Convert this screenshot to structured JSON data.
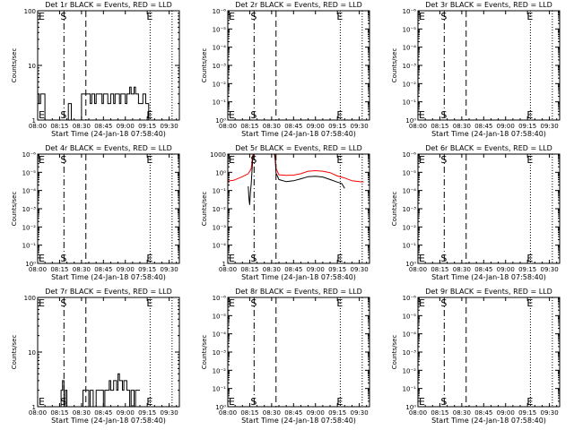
{
  "common": {
    "x_tick_labels": [
      "08:00",
      "08:15",
      "08:30",
      "08:45",
      "09:00",
      "09:15",
      "09:30"
    ],
    "x_tick_minutes": [
      0,
      15,
      30,
      45,
      60,
      75,
      90
    ],
    "x_range_minutes": [
      0,
      97
    ],
    "xlabel": "Start Time (24-Jan-18 07:58:40)",
    "ylabel": "Counts/sec",
    "start_marker": "S",
    "end_marker": "E",
    "colors": {
      "events": "#000000",
      "lld": "#ff0000"
    }
  },
  "chart_data": [
    {
      "type": "line",
      "title": "Det 1r BLACK = Events, RED = LLD",
      "yscale": "log",
      "ylim": [
        1,
        100
      ],
      "y_tick_labels": [
        "1",
        "10",
        "100"
      ],
      "vlines": {
        "dashdot": 18,
        "dashed": 33,
        "dotted": [
          77,
          92
        ]
      },
      "markers": {
        "S_minute": 18,
        "E_minute": 77
      },
      "series": [
        {
          "color": "#000000",
          "steps": [
            [
              -2,
              3
            ],
            [
              1,
              2
            ],
            [
              2,
              3
            ],
            [
              5,
              1
            ],
            [
              20,
              1
            ],
            [
              21,
              2
            ],
            [
              23,
              1
            ],
            [
              29,
              1
            ],
            [
              30,
              3
            ],
            [
              36,
              2
            ],
            [
              37,
              3
            ],
            [
              39,
              2
            ],
            [
              40,
              3
            ],
            [
              44,
              2
            ],
            [
              45,
              3
            ],
            [
              48,
              2
            ],
            [
              50,
              3
            ],
            [
              52,
              2
            ],
            [
              53,
              3
            ],
            [
              56,
              2
            ],
            [
              57,
              3
            ],
            [
              60,
              2
            ],
            [
              61,
              3
            ],
            [
              63,
              4
            ],
            [
              64,
              3
            ],
            [
              66,
              4
            ],
            [
              67,
              3
            ],
            [
              69,
              2
            ],
            [
              72,
              3
            ],
            [
              74,
              2
            ],
            [
              76,
              1
            ],
            [
              76.5,
              1
            ]
          ]
        }
      ]
    },
    {
      "type": "line",
      "title": "Det 2r BLACK = Events, RED = LLD",
      "yscale": "log",
      "ylim": [
        1,
        1000000
      ],
      "y_tick_labels": [
        "10⁰",
        "10⁻¹",
        "10⁻²",
        "10⁻³",
        "10⁻⁴",
        "10⁻⁵",
        "10⁻⁶"
      ],
      "vlines": {
        "dashdot": 18,
        "dashed": 33,
        "dotted": [
          77,
          92
        ]
      },
      "markers": {
        "S_minute": 18,
        "E_minute": 77
      },
      "series": []
    },
    {
      "type": "line",
      "title": "Det 3r BLACK = Events, RED = LLD",
      "yscale": "log",
      "ylim": [
        1,
        1000000
      ],
      "y_tick_labels": [
        "10⁰",
        "10⁻¹",
        "10⁻²",
        "10⁻³",
        "10⁻⁴",
        "10⁻⁵",
        "10⁻⁶"
      ],
      "vlines": {
        "dashdot": 18,
        "dashed": 33,
        "dotted": [
          77,
          92
        ]
      },
      "markers": {
        "S_minute": 18,
        "E_minute": 77
      },
      "series": []
    },
    {
      "type": "line",
      "title": "Det 4r BLACK = Events, RED = LLD",
      "yscale": "log",
      "ylim": [
        1,
        1000000
      ],
      "y_tick_labels": [
        "10⁰",
        "10⁻¹",
        "10⁻²",
        "10⁻³",
        "10⁻⁴",
        "10⁻⁵",
        "10⁻⁶"
      ],
      "vlines": {
        "dashdot": 18,
        "dashed": 33,
        "dotted": [
          77,
          92
        ]
      },
      "markers": {
        "S_minute": 18,
        "E_minute": 77
      },
      "series": []
    },
    {
      "type": "line",
      "title": "Det 5r BLACK = Events, RED = LLD",
      "yscale": "log",
      "ylim": [
        1,
        1000
      ],
      "y_tick_labels": [
        "1",
        "10⁻⁴",
        "10⁻³",
        "10⁻²",
        "10⁻¹",
        "10⁰",
        "1000"
      ],
      "vlines": {
        "dashdot": 18,
        "dashed": 33,
        "dotted": [
          77,
          92
        ]
      },
      "markers": {
        "S_minute": 18,
        "E_minute": 77
      },
      "series": [
        {
          "color": "#ff0000",
          "line": [
            [
              -2,
              178
            ],
            [
              4,
              190
            ],
            [
              10,
              240
            ],
            [
              14,
              290
            ],
            [
              16,
              400
            ],
            [
              17,
              900
            ],
            [
              17.5,
              1000
            ],
            [
              32,
              1000
            ],
            [
              32.5,
              900
            ],
            [
              33,
              400
            ],
            [
              35,
              270
            ],
            [
              40,
              260
            ],
            [
              45,
              265
            ],
            [
              50,
              290
            ],
            [
              55,
              340
            ],
            [
              60,
              350
            ],
            [
              65,
              340
            ],
            [
              70,
              310
            ],
            [
              75,
              250
            ],
            [
              80,
              220
            ],
            [
              85,
              185
            ],
            [
              90,
              175
            ],
            [
              93,
              172
            ]
          ]
        },
        {
          "color": "#000000",
          "line": [
            [
              14,
              130
            ],
            [
              14.5,
              60
            ],
            [
              15,
              40
            ],
            [
              15.5,
              90
            ],
            [
              16,
              150
            ],
            [
              17,
              700
            ],
            [
              18,
              1000
            ],
            [
              32,
              1000
            ],
            [
              32.5,
              700
            ],
            [
              33,
              300
            ],
            [
              35,
              200
            ],
            [
              40,
              175
            ],
            [
              45,
              185
            ],
            [
              50,
              210
            ],
            [
              55,
              240
            ],
            [
              60,
              245
            ],
            [
              65,
              235
            ],
            [
              70,
              200
            ],
            [
              75,
              170
            ],
            [
              78,
              155
            ],
            [
              80,
              115
            ]
          ]
        }
      ]
    },
    {
      "type": "line",
      "title": "Det 6r BLACK = Events, RED = LLD",
      "yscale": "log",
      "ylim": [
        1,
        1000000
      ],
      "y_tick_labels": [
        "10⁰",
        "10⁻¹",
        "10⁻²",
        "10⁻³",
        "10⁻⁴",
        "10⁻⁵",
        "10⁻⁶"
      ],
      "vlines": {
        "dashdot": 18,
        "dashed": 33,
        "dotted": [
          77,
          92
        ]
      },
      "markers": {
        "S_minute": 18,
        "E_minute": 77
      },
      "series": []
    },
    {
      "type": "line",
      "title": "Det 7r BLACK = Events, RED = LLD",
      "yscale": "log",
      "ylim": [
        1,
        100
      ],
      "y_tick_labels": [
        "1",
        "10",
        "100"
      ],
      "vlines": {
        "dashdot": 18,
        "dashed": 33,
        "dotted": [
          77,
          92
        ]
      },
      "markers": {
        "S_minute": 18,
        "E_minute": 77
      },
      "series": [
        {
          "color": "#000000",
          "steps": [
            [
              15,
              1
            ],
            [
              16,
              2
            ],
            [
              17,
              3
            ],
            [
              18,
              1
            ],
            [
              19,
              2
            ],
            [
              20,
              1
            ],
            [
              30,
              1
            ],
            [
              31,
              2
            ],
            [
              35,
              1
            ],
            [
              36,
              2
            ],
            [
              38,
              1
            ],
            [
              40,
              2
            ],
            [
              43,
              2
            ],
            [
              45,
              1
            ],
            [
              46,
              2
            ],
            [
              49,
              3
            ],
            [
              50,
              2
            ],
            [
              52,
              3
            ],
            [
              54,
              2
            ],
            [
              55,
              4
            ],
            [
              56,
              3
            ],
            [
              58,
              2
            ],
            [
              59,
              3
            ],
            [
              61,
              2
            ],
            [
              63,
              1
            ],
            [
              64,
              2
            ],
            [
              66,
              1
            ],
            [
              67,
              2
            ],
            [
              70,
              2
            ]
          ]
        }
      ]
    },
    {
      "type": "line",
      "title": "Det 8r BLACK = Events, RED = LLD",
      "yscale": "log",
      "ylim": [
        1,
        1000000
      ],
      "y_tick_labels": [
        "10⁰",
        "10⁻¹",
        "10⁻²",
        "10⁻³",
        "10⁻⁴",
        "10⁻⁵",
        "10⁻⁶"
      ],
      "vlines": {
        "dashdot": 18,
        "dashed": 33,
        "dotted": [
          77,
          92
        ]
      },
      "markers": {
        "S_minute": 18,
        "E_minute": 77
      },
      "series": []
    },
    {
      "type": "line",
      "title": "Det 9r BLACK = Events, RED = LLD",
      "yscale": "log",
      "ylim": [
        1,
        1000000
      ],
      "y_tick_labels": [
        "10⁰",
        "10⁻¹",
        "10⁻²",
        "10⁻³",
        "10⁻⁴",
        "10⁻⁵",
        "10⁻⁶"
      ],
      "vlines": {
        "dashdot": 18,
        "dashed": 33,
        "dotted": [
          77,
          92
        ]
      },
      "markers": {
        "S_minute": 18,
        "E_minute": 77
      },
      "series": []
    }
  ]
}
